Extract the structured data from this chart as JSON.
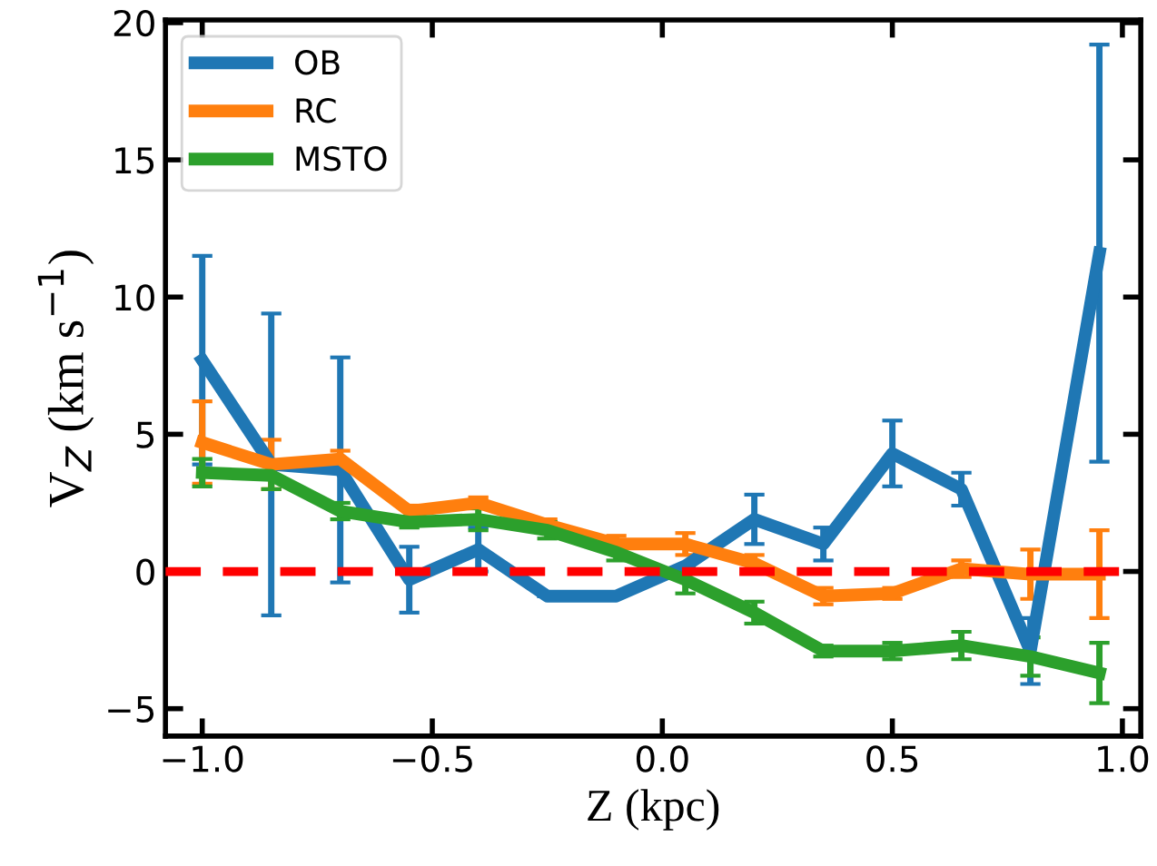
{
  "chart_data": {
    "type": "line",
    "xlabel": "Z (kpc)",
    "ylabel": "V$_{Z}$ (km s$^{−1}$)",
    "x": [
      -1.0,
      -0.85,
      -0.7,
      -0.55,
      -0.4,
      -0.25,
      -0.1,
      0.05,
      0.2,
      0.35,
      0.5,
      0.65,
      0.8,
      0.95
    ],
    "series": [
      {
        "name": "OB",
        "color": "#1f77b4",
        "values": [
          7.7,
          3.9,
          3.7,
          -0.3,
          0.8,
          -0.9,
          -0.9,
          0.2,
          1.9,
          1.0,
          4.3,
          3.0,
          -2.9,
          11.6
        ],
        "errors": [
          3.8,
          5.5,
          4.1,
          1.2,
          0.8,
          null,
          null,
          null,
          0.9,
          0.6,
          1.2,
          0.6,
          1.2,
          7.6
        ]
      },
      {
        "name": "RC",
        "color": "#ff7f0e",
        "values": [
          4.7,
          3.9,
          4.1,
          2.2,
          2.5,
          1.7,
          1.0,
          1.0,
          0.3,
          -0.9,
          -0.8,
          0.1,
          -0.1,
          -0.1
        ],
        "errors": [
          1.5,
          0.9,
          0.3,
          0.2,
          0.2,
          0.2,
          0.3,
          0.4,
          0.3,
          0.3,
          0.2,
          0.3,
          0.9,
          1.6
        ]
      },
      {
        "name": "MSTO",
        "color": "#2ca02c",
        "values": [
          3.6,
          3.5,
          2.2,
          1.8,
          1.9,
          1.5,
          0.7,
          -0.3,
          -1.5,
          -2.9,
          -2.9,
          -2.7,
          -3.1,
          -3.7
        ],
        "errors": [
          0.5,
          0.5,
          0.3,
          0.2,
          0.4,
          0.3,
          0.3,
          0.5,
          0.4,
          0.2,
          0.3,
          0.5,
          0.7,
          1.1
        ]
      }
    ],
    "xlim": [
      -1.08,
      1.04
    ],
    "xticks": [
      {
        "value": -1.0,
        "label": "−1.0"
      },
      {
        "value": -0.5,
        "label": "−0.5"
      },
      {
        "value": 0.0,
        "label": "0.0"
      },
      {
        "value": 0.5,
        "label": "0.5"
      },
      {
        "value": 1.0,
        "label": "1.0"
      }
    ],
    "ylim": [
      -6.0,
      20.1
    ],
    "yticks": [
      {
        "value": -5,
        "label": "−5"
      },
      0,
      5,
      10,
      15,
      20
    ],
    "ref_lines": [
      {
        "axis": "y",
        "value": 0,
        "color": "#ff0000",
        "line_style": "dashed"
      }
    ],
    "legend": "top left",
    "grid": false,
    "marker": "none",
    "line_style": "solid"
  }
}
